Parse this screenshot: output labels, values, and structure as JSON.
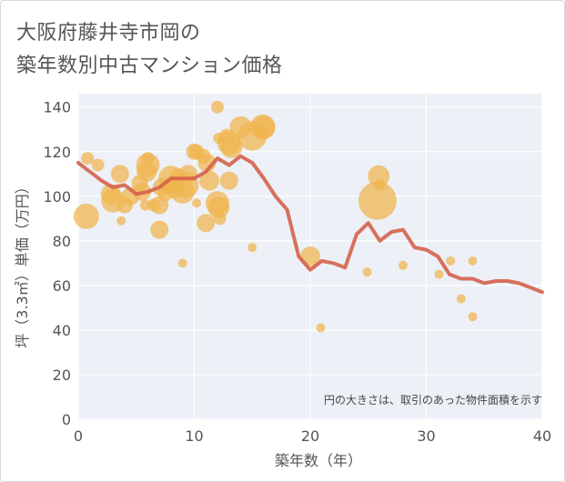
{
  "title_line1": "大阪府藤井寺市岡の",
  "title_line2": "築年数別中古マンション価格",
  "chart_data": {
    "type": "scatter",
    "xlabel": "築年数（年）",
    "ylabel": "坪（3.3㎡）単価（万円）",
    "xlim": [
      0,
      40
    ],
    "ylim": [
      0,
      146
    ],
    "xticks": [
      0,
      10,
      20,
      30,
      40
    ],
    "yticks": [
      0,
      20,
      40,
      60,
      80,
      100,
      120,
      140
    ],
    "note": "円の大きさは、取引のあった物件面積を示す",
    "colors": {
      "bubble": "#f0b44c",
      "line": "#d4624a",
      "plot_bg": "#edf0f7",
      "grid": "#ffffff"
    },
    "bubbles": [
      {
        "x": 0.7,
        "y": 91,
        "s": 14
      },
      {
        "x": 0.8,
        "y": 117,
        "s": 7
      },
      {
        "x": 1.7,
        "y": 114,
        "s": 7
      },
      {
        "x": 2.8,
        "y": 101,
        "s": 11
      },
      {
        "x": 3.0,
        "y": 98,
        "s": 13
      },
      {
        "x": 3.6,
        "y": 110,
        "s": 10
      },
      {
        "x": 3.7,
        "y": 89,
        "s": 5
      },
      {
        "x": 4.0,
        "y": 96,
        "s": 9
      },
      {
        "x": 4.5,
        "y": 100,
        "s": 10
      },
      {
        "x": 5.3,
        "y": 106,
        "s": 9
      },
      {
        "x": 5.5,
        "y": 102,
        "s": 10
      },
      {
        "x": 5.9,
        "y": 111,
        "s": 11
      },
      {
        "x": 6.0,
        "y": 114,
        "s": 13
      },
      {
        "x": 6.0,
        "y": 117,
        "s": 7
      },
      {
        "x": 5.8,
        "y": 96,
        "s": 6
      },
      {
        "x": 6.5,
        "y": 96,
        "s": 7
      },
      {
        "x": 7.0,
        "y": 96,
        "s": 10
      },
      {
        "x": 7.0,
        "y": 85,
        "s": 10
      },
      {
        "x": 7.2,
        "y": 104,
        "s": 10
      },
      {
        "x": 7.5,
        "y": 101,
        "s": 8
      },
      {
        "x": 7.8,
        "y": 105,
        "s": 9
      },
      {
        "x": 8.0,
        "y": 108,
        "s": 14
      },
      {
        "x": 8.3,
        "y": 103,
        "s": 10
      },
      {
        "x": 8.6,
        "y": 109,
        "s": 9
      },
      {
        "x": 9.0,
        "y": 102,
        "s": 13
      },
      {
        "x": 9.3,
        "y": 105,
        "s": 14
      },
      {
        "x": 9.5,
        "y": 110,
        "s": 10
      },
      {
        "x": 9.0,
        "y": 70,
        "s": 5
      },
      {
        "x": 10.0,
        "y": 120,
        "s": 9
      },
      {
        "x": 10.2,
        "y": 120,
        "s": 8
      },
      {
        "x": 10.2,
        "y": 97,
        "s": 5
      },
      {
        "x": 10.8,
        "y": 118,
        "s": 8
      },
      {
        "x": 11.1,
        "y": 115,
        "s": 10
      },
      {
        "x": 11.0,
        "y": 88,
        "s": 10
      },
      {
        "x": 11.3,
        "y": 107,
        "s": 11
      },
      {
        "x": 12.0,
        "y": 140,
        "s": 7
      },
      {
        "x": 12.1,
        "y": 126,
        "s": 6
      },
      {
        "x": 12.0,
        "y": 97,
        "s": 13
      },
      {
        "x": 12.1,
        "y": 95,
        "s": 12
      },
      {
        "x": 12.2,
        "y": 90,
        "s": 7
      },
      {
        "x": 12.8,
        "y": 127,
        "s": 8
      },
      {
        "x": 13.0,
        "y": 124,
        "s": 13
      },
      {
        "x": 13.2,
        "y": 122,
        "s": 12
      },
      {
        "x": 13.0,
        "y": 107,
        "s": 10
      },
      {
        "x": 14.0,
        "y": 131,
        "s": 12
      },
      {
        "x": 15.0,
        "y": 127,
        "s": 16
      },
      {
        "x": 15.0,
        "y": 77,
        "s": 5
      },
      {
        "x": 15.9,
        "y": 131,
        "s": 14
      },
      {
        "x": 16.0,
        "y": 131,
        "s": 12
      },
      {
        "x": 20.0,
        "y": 73,
        "s": 11
      },
      {
        "x": 20.9,
        "y": 41,
        "s": 5
      },
      {
        "x": 24.9,
        "y": 66,
        "s": 5
      },
      {
        "x": 25.8,
        "y": 98,
        "s": 21
      },
      {
        "x": 25.9,
        "y": 109,
        "s": 12
      },
      {
        "x": 26.0,
        "y": 105,
        "s": 6
      },
      {
        "x": 28.0,
        "y": 69,
        "s": 5
      },
      {
        "x": 31.1,
        "y": 65,
        "s": 5
      },
      {
        "x": 32.1,
        "y": 71,
        "s": 5
      },
      {
        "x": 33.0,
        "y": 54,
        "s": 5
      },
      {
        "x": 34.0,
        "y": 71,
        "s": 5
      },
      {
        "x": 34.0,
        "y": 46,
        "s": 5
      }
    ],
    "line": {
      "x": [
        0,
        1,
        2,
        3,
        4,
        5,
        6,
        7,
        8,
        9,
        10,
        11,
        12,
        13,
        14,
        15,
        16,
        17,
        18,
        19,
        20,
        21,
        22,
        23,
        24,
        25,
        26,
        27,
        28,
        29,
        30,
        31,
        32,
        33,
        34,
        35,
        36,
        37,
        38,
        39,
        40
      ],
      "y": [
        115,
        111,
        107,
        104,
        105,
        101,
        102,
        104,
        108,
        108,
        108,
        111,
        117,
        114,
        118,
        115,
        108,
        100,
        94,
        73,
        67,
        71,
        70,
        68,
        83,
        88,
        80,
        84,
        85,
        77,
        76,
        73,
        65,
        63,
        63,
        61,
        62,
        62,
        61,
        59,
        57
      ]
    }
  }
}
